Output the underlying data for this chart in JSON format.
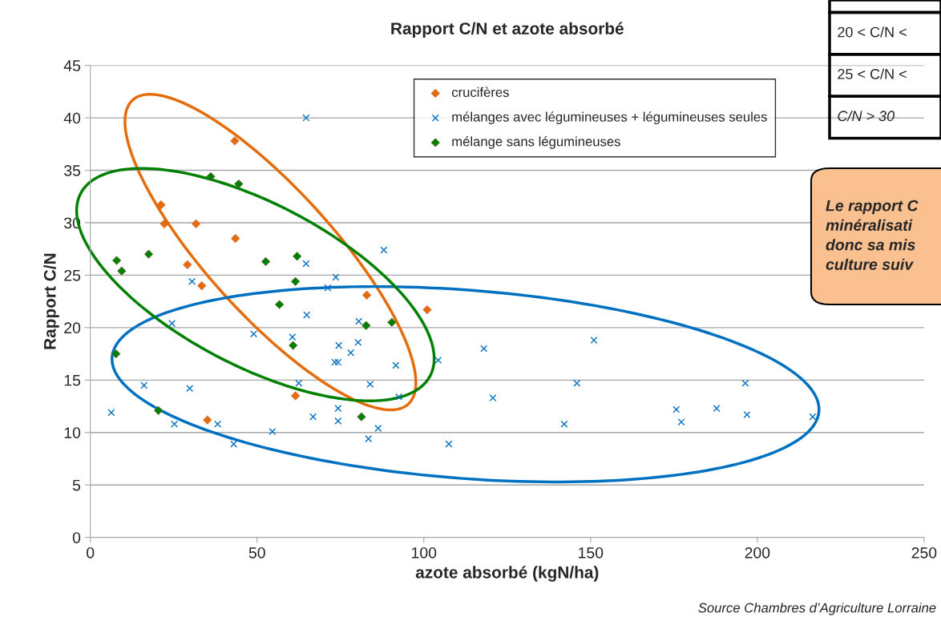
{
  "chart_data": {
    "type": "scatter",
    "title": "Rapport C/N et azote absorbé",
    "xlabel": "azote absorbé (kgN/ha)",
    "ylabel": "Rapport C/N",
    "xlim": [
      0,
      250
    ],
    "xticks": [
      0,
      50,
      100,
      150,
      200,
      250
    ],
    "ylim": [
      0,
      45
    ],
    "yticks": [
      0,
      5,
      10,
      15,
      20,
      25,
      30,
      35,
      40,
      45
    ],
    "grid": "y",
    "legend": "top",
    "series": [
      {
        "name": "crucifères",
        "color": "#e46c0a",
        "marker": "diamond",
        "x": [
          43.3,
          21.2,
          22.2,
          31.7,
          43.5,
          29.1,
          33.4,
          82.9,
          101,
          61.5,
          35.1
        ],
        "values": [
          37.8,
          31.7,
          29.9,
          29.9,
          28.5,
          26.0,
          24.0,
          23.1,
          21.7,
          13.5,
          11.2
        ]
      },
      {
        "name": "mélanges avec légumineuses + légumineuses seules",
        "color": "#0070c0",
        "marker": "cross",
        "x": [
          64.7,
          88.0,
          64.7,
          30.5,
          73.6,
          71.2,
          64.9,
          80.5,
          24.5,
          49.0,
          60.6,
          74.5,
          80.3,
          78.1,
          73.3,
          74.3,
          91.6,
          104.3,
          62.5,
          83.9,
          92.5,
          74.3,
          66.8,
          74.3,
          86.3,
          83.4,
          54.6,
          43.0,
          38.2,
          25.2,
          29.8,
          16.1,
          6.3,
          107.5,
          118,
          120.7,
          151,
          145.9,
          142.1,
          175.7,
          177.2,
          187.8,
          196.4,
          196.9,
          216.6
        ],
        "values": [
          40.0,
          27.4,
          26.1,
          24.4,
          24.8,
          23.8,
          21.2,
          20.6,
          20.4,
          19.4,
          19.1,
          18.3,
          18.6,
          17.6,
          16.7,
          16.7,
          16.4,
          16.9,
          14.7,
          14.6,
          13.4,
          12.3,
          11.5,
          11.1,
          10.4,
          9.4,
          10.1,
          8.9,
          10.8,
          10.8,
          14.2,
          14.5,
          11.9,
          8.9,
          18.0,
          13.3,
          18.8,
          14.7,
          10.8,
          12.2,
          11.0,
          12.3,
          14.7,
          11.7,
          11.5
        ]
      },
      {
        "name": "mélange sans légumineuses",
        "color": "#008000",
        "marker": "diamond",
        "x": [
          36.1,
          44.5,
          7.9,
          9.4,
          17.5,
          52.6,
          62.0,
          56.7,
          61.5,
          60.8,
          82.7,
          90.4,
          7.7,
          20.4,
          81.3
        ],
        "values": [
          34.4,
          33.7,
          26.4,
          25.4,
          27.0,
          26.3,
          26.8,
          22.2,
          24.4,
          18.3,
          20.2,
          20.5,
          17.5,
          12.1,
          11.5
        ]
      }
    ],
    "annotations": [
      "Source Chambres d’Agriculture Lorraine",
      "20 < C/N <",
      "25 < C/N <",
      "C/N > 30",
      "Le rapport C\nminéralisati\ndonc sa mis\nculture suiv"
    ]
  }
}
